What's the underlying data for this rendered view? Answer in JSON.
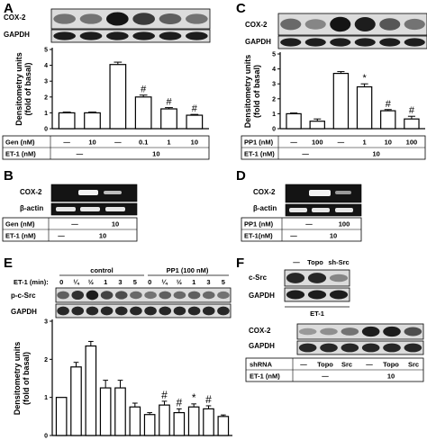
{
  "panels": {
    "A": "A",
    "B": "B",
    "C": "C",
    "D": "D",
    "E": "E",
    "F": "F"
  },
  "labels": {
    "cox2": "COX-2",
    "gapdh": "GAPDH",
    "beta_actin": "β-actin",
    "p_csrc": "p-c-Src",
    "csrc": "c-Src",
    "gen": "Gen (nM)",
    "et1": "ET-1 (nM)",
    "et1_nm": "ET-1(nM)",
    "pp1": "PP1 (nM)",
    "et1_min": "ET-1 (min):",
    "control": "control",
    "pp1_100": "PP1 (100 nM)",
    "shrna": "shRNA",
    "et1_f": "ET-1",
    "et1_f2": "ET-1 (nM)",
    "dash": "—",
    "topo": "Topo",
    "sh_src": "sh-Src",
    "src": "Src",
    "ten": "10",
    "hundred": "100"
  },
  "chart_data": [
    {
      "id": "A",
      "type": "bar",
      "ylabel": "Densitometry units (fold of basal)",
      "ylim": [
        0,
        5
      ],
      "yticks": [
        0,
        1,
        2,
        3,
        4,
        5
      ],
      "values": [
        1.0,
        1.0,
        4.05,
        2.0,
        1.25,
        0.85
      ],
      "errors": [
        0.05,
        0.05,
        0.15,
        0.12,
        0.08,
        0.05
      ],
      "annotations": [
        "",
        "",
        "",
        "#",
        "#",
        "#"
      ],
      "treatment_rows": [
        {
          "label": "Gen (nM)",
          "cells": [
            "—",
            "10",
            "—",
            "0.1",
            "1",
            "10"
          ]
        },
        {
          "label": "ET-1 (nM)",
          "groups": [
            {
              "text": "—",
              "span": 2
            },
            {
              "text": "10",
              "span": 4
            }
          ]
        }
      ]
    },
    {
      "id": "C",
      "type": "bar",
      "ylabel": "Densitometry units (fold of basal)",
      "ylim": [
        0,
        5
      ],
      "yticks": [
        0,
        1,
        2,
        3,
        4,
        5
      ],
      "values": [
        1.0,
        0.5,
        3.7,
        2.8,
        1.2,
        0.65
      ],
      "errors": [
        0.05,
        0.15,
        0.12,
        0.2,
        0.08,
        0.18
      ],
      "annotations": [
        "",
        "",
        "",
        "*",
        "#",
        "#"
      ],
      "treatment_rows": [
        {
          "label": "PP1 (nM)",
          "cells": [
            "—",
            "100",
            "—",
            "1",
            "10",
            "100"
          ]
        },
        {
          "label": "ET-1 (nM)",
          "groups": [
            {
              "text": "—",
              "span": 2
            },
            {
              "text": "10",
              "span": 4
            }
          ]
        }
      ]
    },
    {
      "id": "E",
      "type": "bar",
      "ylabel": "Densitometry units (fold of basal)",
      "ylim": [
        0,
        3
      ],
      "yticks": [
        0,
        1,
        2,
        3
      ],
      "categories": [
        "0",
        "¼",
        "½",
        "1",
        "3",
        "5",
        "0",
        "¼",
        "½",
        "1",
        "3",
        "5"
      ],
      "values": [
        1.0,
        1.8,
        2.35,
        1.25,
        1.25,
        0.75,
        0.55,
        0.8,
        0.6,
        0.75,
        0.7,
        0.5
      ],
      "errors": [
        0.0,
        0.12,
        0.12,
        0.2,
        0.2,
        0.1,
        0.05,
        0.1,
        0.1,
        0.08,
        0.08,
        0.04
      ],
      "annotations": [
        "",
        "",
        "",
        "",
        "",
        "",
        "",
        "#",
        "#",
        "*",
        "#",
        ""
      ]
    }
  ],
  "treatments": {
    "B": {
      "gen": [
        "—",
        "10"
      ],
      "et1": [
        "—",
        "10"
      ]
    },
    "D": {
      "pp1": [
        "—",
        "100"
      ],
      "et1": [
        "—",
        "10"
      ]
    },
    "F_top": [
      "—",
      "Topo",
      "sh-Src"
    ],
    "F_bottom": {
      "shrna": [
        "—",
        "Topo",
        "Src",
        "—",
        "Topo",
        "Src"
      ],
      "et1": [
        "—",
        "10"
      ]
    }
  }
}
